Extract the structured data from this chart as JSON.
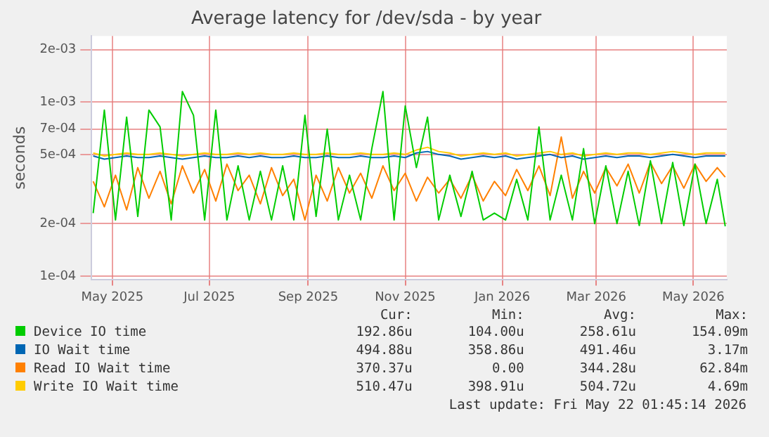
{
  "chart_data": {
    "type": "line",
    "title": "Average latency for /dev/sda - by year",
    "ylabel": "seconds",
    "log": "y",
    "grid": true,
    "legend": "bottom",
    "x": [
      "2025-04-19",
      "2025-04-26",
      "2025-05-03",
      "2025-05-10",
      "2025-05-17",
      "2025-05-24",
      "2025-05-31",
      "2025-06-07",
      "2025-06-14",
      "2025-06-21",
      "2025-06-28",
      "2025-07-05",
      "2025-07-12",
      "2025-07-19",
      "2025-07-26",
      "2025-08-02",
      "2025-08-09",
      "2025-08-16",
      "2025-08-23",
      "2025-08-30",
      "2025-09-06",
      "2025-09-13",
      "2025-09-20",
      "2025-09-27",
      "2025-10-04",
      "2025-10-11",
      "2025-10-18",
      "2025-10-25",
      "2025-11-01",
      "2025-11-08",
      "2025-11-15",
      "2025-11-22",
      "2025-11-29",
      "2025-12-06",
      "2025-12-13",
      "2025-12-20",
      "2025-12-27",
      "2026-01-03",
      "2026-01-10",
      "2026-01-17",
      "2026-01-24",
      "2026-01-31",
      "2026-02-07",
      "2026-02-14",
      "2026-02-21",
      "2026-02-28",
      "2026-03-07",
      "2026-03-14",
      "2026-03-21",
      "2026-03-28",
      "2026-04-04",
      "2026-04-11",
      "2026-04-18",
      "2026-04-25",
      "2026-05-02",
      "2026-05-09",
      "2026-05-16",
      "2026-05-21"
    ],
    "xlim": [
      "2025-04-18",
      "2026-05-22"
    ],
    "xticks": [
      {
        "value": "2025-05-01",
        "label": "May 2025"
      },
      {
        "value": "2025-07-01",
        "label": "Jul 2025"
      },
      {
        "value": "2025-09-01",
        "label": "Sep 2025"
      },
      {
        "value": "2025-11-01",
        "label": "Nov 2025"
      },
      {
        "value": "2026-01-01",
        "label": "Jan 2026"
      },
      {
        "value": "2026-03-01",
        "label": "Mar 2026"
      },
      {
        "value": "2026-05-01",
        "label": "May 2026"
      }
    ],
    "ylim": [
      9.5e-05,
      0.0024
    ],
    "yticks": [
      {
        "value": 0.0001,
        "label": "1e-04"
      },
      {
        "value": 0.0002,
        "label": "2e-04"
      },
      {
        "value": 0.0005,
        "label": "5e-04"
      },
      {
        "value": 0.0007,
        "label": "7e-04"
      },
      {
        "value": 0.001,
        "label": "1e-03"
      },
      {
        "value": 0.002,
        "label": "2e-03"
      }
    ],
    "series": [
      {
        "name": "Device IO time",
        "color": "#00cc00",
        "values": [
          0.00023,
          0.0009,
          0.00021,
          0.00082,
          0.00022,
          0.0009,
          0.00072,
          0.00021,
          0.00115,
          0.00084,
          0.00021,
          0.0009,
          0.00021,
          0.00043,
          0.00021,
          0.0004,
          0.00021,
          0.00043,
          0.00021,
          0.00084,
          0.00022,
          0.0007,
          0.00021,
          0.00038,
          0.00021,
          0.00054,
          0.00115,
          0.00021,
          0.00095,
          0.00042,
          0.00082,
          0.00021,
          0.00038,
          0.00022,
          0.0004,
          0.00021,
          0.00023,
          0.00021,
          0.00036,
          0.00021,
          0.00072,
          0.00021,
          0.00038,
          0.00021,
          0.00054,
          0.0002,
          0.00043,
          0.0002,
          0.0004,
          0.000195,
          0.00046,
          0.0002,
          0.00045,
          0.000195,
          0.00044,
          0.0002,
          0.00036,
          0.000193
        ]
      },
      {
        "name": "IO Wait time",
        "color": "#0066b3",
        "values": [
          0.00049,
          0.00047,
          0.00048,
          0.00049,
          0.00048,
          0.00048,
          0.00049,
          0.00048,
          0.00047,
          0.00048,
          0.00049,
          0.00048,
          0.00048,
          0.00049,
          0.00048,
          0.00049,
          0.00048,
          0.00048,
          0.00049,
          0.00048,
          0.00048,
          0.00049,
          0.00048,
          0.00048,
          0.00049,
          0.00048,
          0.00048,
          0.00049,
          0.00048,
          0.00051,
          0.00052,
          0.0005,
          0.00049,
          0.00047,
          0.00048,
          0.00049,
          0.00048,
          0.00049,
          0.00047,
          0.00048,
          0.00049,
          0.0005,
          0.00048,
          0.00049,
          0.00047,
          0.00048,
          0.00049,
          0.00048,
          0.00049,
          0.00049,
          0.00048,
          0.00049,
          0.0005,
          0.00049,
          0.00048,
          0.00049,
          0.00049,
          0.00049
        ]
      },
      {
        "name": "Read IO Wait time",
        "color": "#ff8000",
        "values": [
          0.00035,
          0.00025,
          0.00038,
          0.00024,
          0.00042,
          0.00028,
          0.0004,
          0.00026,
          0.00043,
          0.0003,
          0.00041,
          0.00027,
          0.00044,
          0.00031,
          0.00038,
          0.00026,
          0.00042,
          0.00029,
          0.00036,
          0.00021,
          0.00038,
          0.00027,
          0.00042,
          0.0003,
          0.00039,
          0.00028,
          0.00043,
          0.00031,
          0.00039,
          0.00027,
          0.00037,
          0.0003,
          0.00036,
          0.00028,
          0.00038,
          0.00027,
          0.00035,
          0.00029,
          0.00041,
          0.00031,
          0.00043,
          0.00029,
          0.00063,
          0.00028,
          0.0004,
          0.0003,
          0.00042,
          0.00033,
          0.00044,
          0.0003,
          0.00045,
          0.00034,
          0.00043,
          0.00032,
          0.00044,
          0.00035,
          0.00042,
          0.00037
        ]
      },
      {
        "name": "Write IO Wait time",
        "color": "#ffcc00",
        "values": [
          0.00051,
          0.00049,
          0.0005,
          0.00051,
          0.0005,
          0.0005,
          0.00051,
          0.0005,
          0.00049,
          0.0005,
          0.00051,
          0.0005,
          0.0005,
          0.00051,
          0.0005,
          0.00051,
          0.0005,
          0.0005,
          0.00051,
          0.0005,
          0.0005,
          0.00051,
          0.0005,
          0.0005,
          0.00051,
          0.0005,
          0.0005,
          0.00051,
          0.0005,
          0.00053,
          0.00055,
          0.00052,
          0.00051,
          0.00049,
          0.0005,
          0.00051,
          0.0005,
          0.00051,
          0.00049,
          0.0005,
          0.00051,
          0.00052,
          0.0005,
          0.00051,
          0.00049,
          0.0005,
          0.00051,
          0.0005,
          0.00051,
          0.00051,
          0.0005,
          0.00051,
          0.00052,
          0.00051,
          0.0005,
          0.00051,
          0.00051,
          0.00051
        ]
      }
    ],
    "annotations": [
      "Cur:",
      "Min:",
      "Avg:",
      "Max:",
      "192.86u",
      "104.00u",
      "258.61u",
      "154.09m",
      "494.88u",
      "358.86u",
      "491.46u",
      "3.17m",
      "370.37u",
      "0.00",
      "344.28u",
      "62.84m",
      "510.47u",
      "398.91u",
      "504.72u",
      "4.69m",
      "Last update: Fri May 22 01:45:14 2026"
    ]
  }
}
